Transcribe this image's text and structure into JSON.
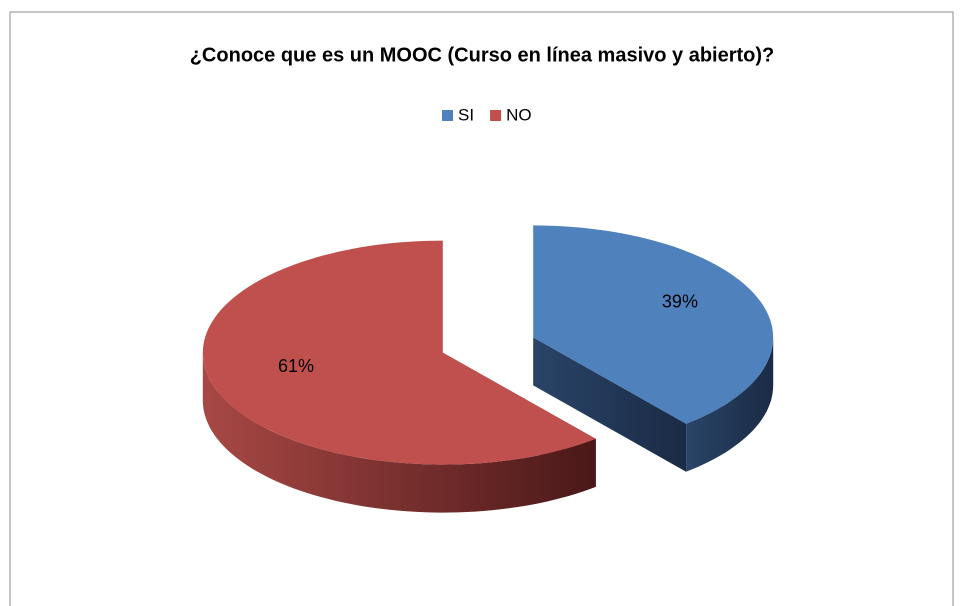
{
  "chart_data": {
    "type": "pie",
    "title": "¿Conoce que es un MOOC (Curso  en línea masivo y abierto)?",
    "categories": [
      "SI",
      "NO"
    ],
    "values": [
      39,
      61
    ],
    "value_labels": [
      "39%",
      "61%"
    ],
    "colors": [
      "#4f81bd",
      "#c0504d"
    ],
    "legend": "top",
    "exploded": true,
    "three_d": true
  }
}
